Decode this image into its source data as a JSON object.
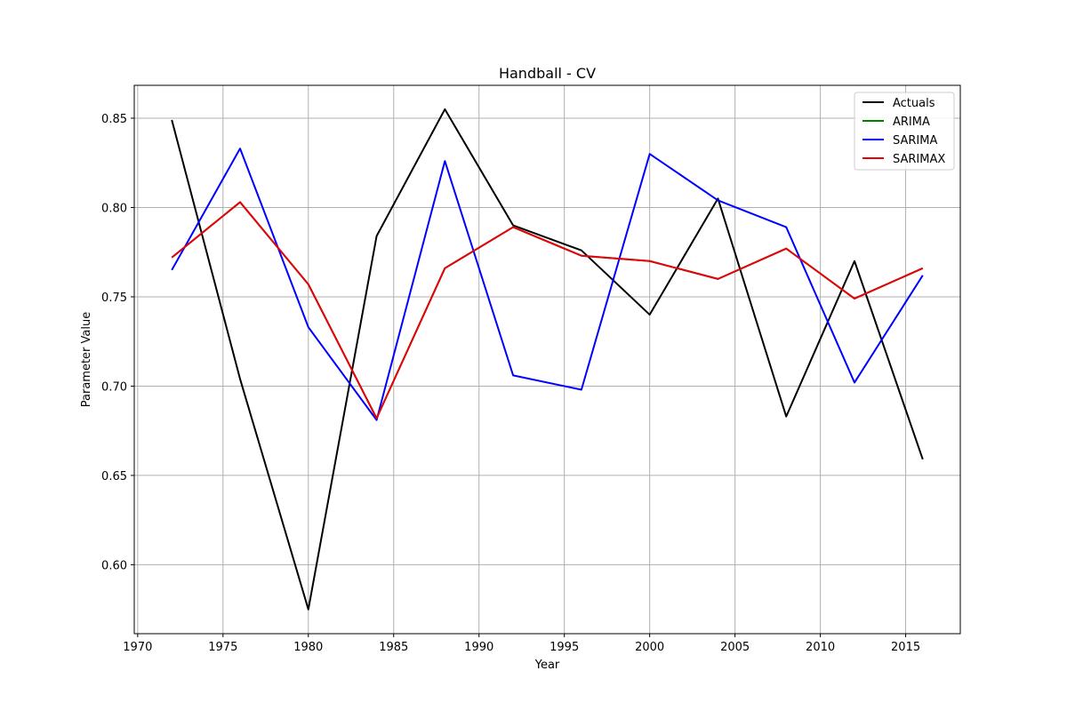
{
  "chart_data": {
    "type": "line",
    "title": "Handball - CV",
    "xlabel": "Year",
    "ylabel": "Parameter Value",
    "xlim": [
      1969.8,
      2018.2
    ],
    "ylim": [
      0.5614,
      0.8684
    ],
    "x_ticks": [
      1970,
      1975,
      1980,
      1985,
      1990,
      1995,
      2000,
      2005,
      2010,
      2015
    ],
    "y_ticks": [
      0.6,
      0.65,
      0.7,
      0.75,
      0.8,
      0.85
    ],
    "grid": true,
    "legend_position": "top-right",
    "x": [
      1972,
      1976,
      1980,
      1984,
      1988,
      1992,
      1996,
      2000,
      2004,
      2008,
      2012,
      2016
    ],
    "series": [
      {
        "name": "Actuals",
        "color": "#000000",
        "values": [
          0.849,
          0.704,
          0.575,
          0.784,
          0.855,
          0.79,
          0.776,
          0.74,
          0.805,
          0.683,
          0.77,
          0.659
        ]
      },
      {
        "name": "ARIMA",
        "color": "#008000",
        "values": [
          0.772,
          0.803,
          0.757,
          0.682,
          0.766,
          0.789,
          0.773,
          0.77,
          0.76,
          0.777,
          0.749,
          0.766
        ]
      },
      {
        "name": "SARIMA",
        "color": "#0000ff",
        "values": [
          0.765,
          0.833,
          0.733,
          0.681,
          0.826,
          0.706,
          0.698,
          0.83,
          0.804,
          0.789,
          0.702,
          0.762
        ]
      },
      {
        "name": "SARIMAX",
        "color": "#e8000b",
        "values": [
          0.772,
          0.803,
          0.757,
          0.682,
          0.766,
          0.789,
          0.773,
          0.77,
          0.76,
          0.777,
          0.749,
          0.766
        ]
      }
    ]
  }
}
